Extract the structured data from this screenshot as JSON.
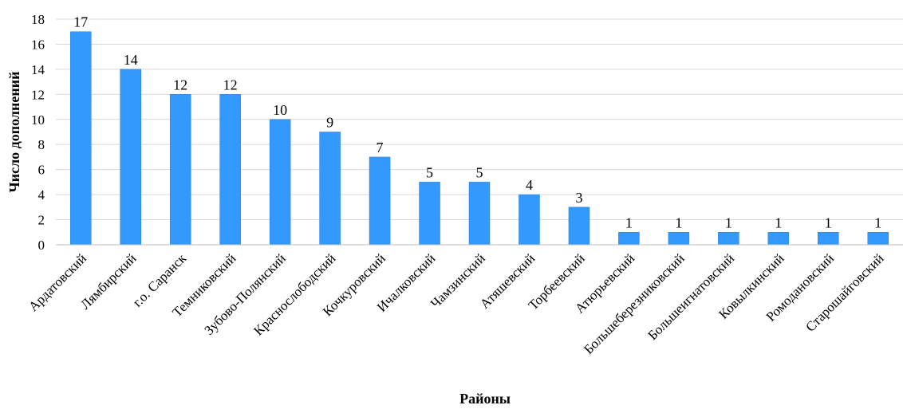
{
  "chart_data": {
    "type": "bar",
    "title": "",
    "xlabel": "Районы",
    "ylabel": "Число дополнений",
    "ylim": [
      0,
      18
    ],
    "yticks": [
      0,
      2,
      4,
      6,
      8,
      10,
      12,
      14,
      16,
      18
    ],
    "grid": true,
    "legend": "none",
    "bar_color": "#3399ff",
    "categories": [
      "Ардатовский",
      "Лямбирский",
      "г.о. Саранск",
      "Темниковский",
      "Зубово-Полянский",
      "Краснослободский",
      "Кочкуровский",
      "Ичалковский",
      "Чамзинский",
      "Атяшевский",
      "Торбеевский",
      "Атюрьевский",
      "Большеберезниковский",
      "Большеигнатовский",
      "Ковылкинский",
      "Ромодановский",
      "Старошайговский"
    ],
    "values": [
      17,
      14,
      12,
      12,
      10,
      9,
      7,
      5,
      5,
      4,
      3,
      1,
      1,
      1,
      1,
      1,
      1
    ]
  }
}
